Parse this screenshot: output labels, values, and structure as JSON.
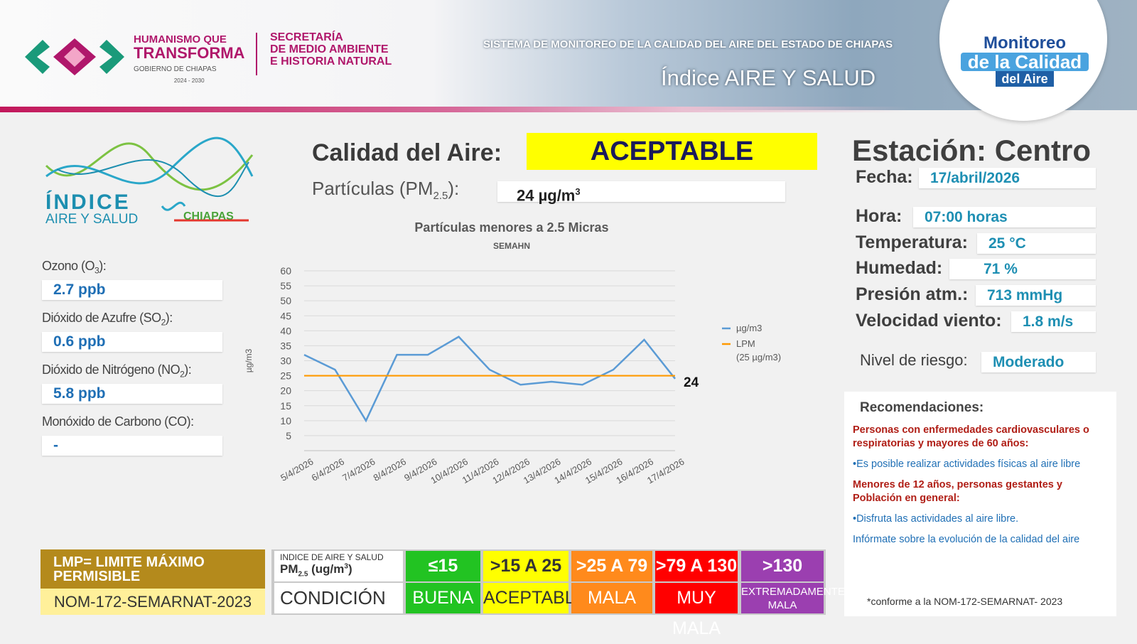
{
  "header": {
    "gov_line1": "HUMANISMO QUE",
    "gov_line2": "TRANSFORMA",
    "gov_line3": "GOBIERNO DE CHIAPAS",
    "gov_years": "2024 - 2030",
    "sec_line1": "SECRETARÍA",
    "sec_line2": "DE MEDIO AMBIENTE",
    "sec_line3": "E HISTORIA NATURAL",
    "system": "SISTEMA DE MONITOREO DE LA CALIDAD DEL AIRE DEL ESTADO DE CHIAPAS",
    "index_title": "Índice AIRE Y SALUD",
    "badge_line1": "Monitoreo",
    "badge_line2": "de la Calidad",
    "badge_line3": "del Aire"
  },
  "logo": {
    "line1": "ÍNDICE",
    "line2": "AIRE Y SALUD",
    "line3": "CHIAPAS"
  },
  "summary": {
    "quality_label": "Calidad del Aire:",
    "quality_value": "ACEPTABLE",
    "pm_label": "Partículas (PM",
    "pm_sub": "2.5",
    "pm_end": "):",
    "pm_value": "24 µg/m",
    "pm_sup": "3"
  },
  "pollutants": [
    {
      "label": "Ozono (O",
      "sub": "3",
      "end": "):",
      "value": "2.7 ppb"
    },
    {
      "label": "Dióxido de Azufre (SO",
      "sub": "2",
      "end": "):",
      "value": "0.6 ppb"
    },
    {
      "label": "Dióxido de Nitrógeno (NO",
      "sub": "2",
      "end": "):",
      "value": "5.8 ppb"
    },
    {
      "label": "Monóxido de Carbono (CO):",
      "value": "-"
    }
  ],
  "chart_data": {
    "type": "line",
    "title": "Partículas menores a 2.5 Micras",
    "subtitle": "SEMAHN",
    "y_label": "µg/m3",
    "categories": [
      "5/4/2026",
      "6/4/2026",
      "7/4/2026",
      "8/4/2026",
      "9/4/2026",
      "10/4/2026",
      "11/4/2026",
      "12/4/2026",
      "13/4/2026",
      "14/4/2026",
      "15/4/2026",
      "16/4/2026",
      "17/4/2026"
    ],
    "series": [
      {
        "name": "µg/m3",
        "color": "#5b9bd5",
        "values": [
          32,
          27,
          10,
          32,
          32,
          38,
          27,
          22,
          23,
          22,
          27,
          37,
          24
        ]
      },
      {
        "name": "LPM",
        "note": "(25 µg/m3)",
        "color": "#ff9900",
        "values": [
          25,
          25,
          25,
          25,
          25,
          25,
          25,
          25,
          25,
          25,
          25,
          25,
          25
        ]
      }
    ],
    "ylim": [
      0,
      60
    ],
    "yticks": [
      5,
      10,
      15,
      20,
      25,
      30,
      35,
      40,
      45,
      50,
      55,
      60
    ],
    "grid": true,
    "legend": "right"
  },
  "station": {
    "title": "Estación: Centro",
    "fields": [
      {
        "label": "Fecha:",
        "value": "17/abril/2026"
      },
      {
        "label": "Hora:",
        "value": "07:00 horas"
      },
      {
        "label": "Temperatura:",
        "value": "25 °C"
      },
      {
        "label": "Humedad:",
        "value": "71 %"
      },
      {
        "label": "Presión atm.:",
        "value": "713 mmHg"
      },
      {
        "label": "Velocidad viento:",
        "value": "1.8 m/s"
      },
      {
        "label": "Nivel de riesgo:",
        "value": "Moderado"
      }
    ]
  },
  "recommendations": {
    "title": "Recomendaciones:",
    "items": [
      {
        "kind": "group",
        "text": "Personas con enfermedades cardiovasculares o respiratorias y mayores de 60 años:"
      },
      {
        "kind": "advice",
        "text": "•Es posible realizar actividades físicas al aire libre"
      },
      {
        "kind": "group",
        "text": "Menores de 12 años, personas gestantes y Población en general:"
      },
      {
        "kind": "advice",
        "text": "•Disfruta las actividades al aire libre."
      },
      {
        "kind": "advice",
        "text": "Infórmate sobre la evolución de la calidad del aire"
      }
    ],
    "note": "*conforme a la NOM-172-SEMARNAT- 2023"
  },
  "limits": {
    "title": "LMP= LIMITE MÁXIMO PERMISIBLE",
    "norm": "NOM-172-SEMARNAT-2023"
  },
  "scale": {
    "header_top": "INDICE DE AIRE Y SALUD",
    "header_pm": "PM",
    "header_sub": "2.5",
    "header_unit": " (ug/m",
    "header_sup": "3",
    "header_end": ")",
    "condition_label": "CONDICIÓN",
    "levels": [
      {
        "range": "≤15",
        "condition": "BUENA",
        "color": "#22c322"
      },
      {
        "range": ">15 A 25",
        "condition": "ACEPTABLE",
        "color": "#ffff00"
      },
      {
        "range": ">25 A 79",
        "condition": "MALA",
        "color": "#ff8a1c"
      },
      {
        "range": ">79 A 130",
        "condition": "MUY MALA",
        "color": "#ff0000"
      },
      {
        "range": ">130",
        "condition": "EXTREMADAMENTE MALA",
        "color": "#9b3fb0"
      }
    ]
  }
}
